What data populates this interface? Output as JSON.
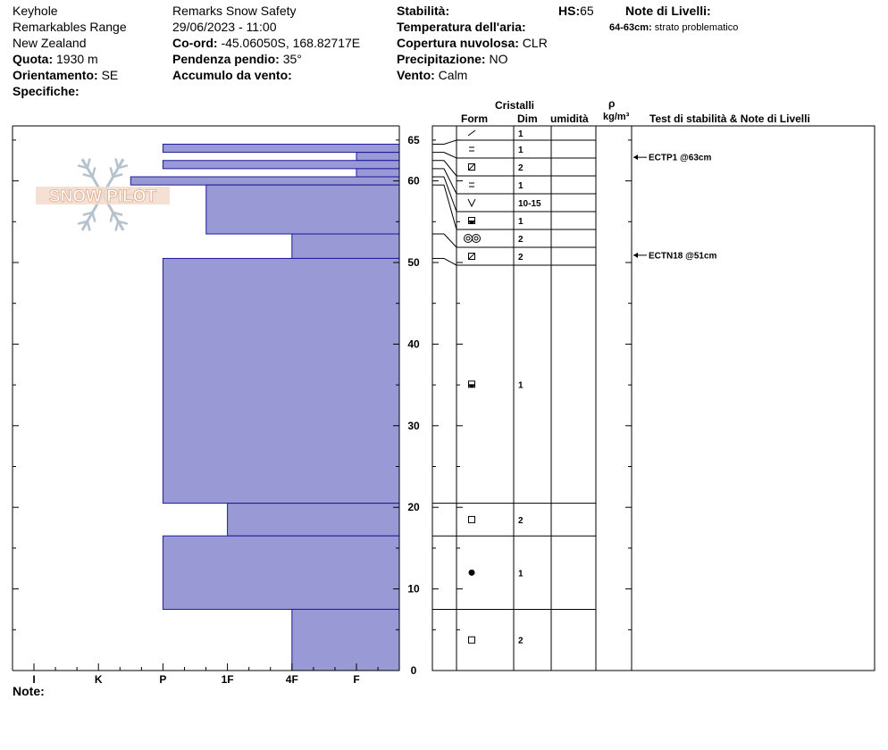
{
  "header": {
    "location": [
      "Keyhole",
      "Remarkables Range",
      "New Zealand"
    ],
    "quota_label": "Quota:",
    "quota_value": "1930 m",
    "orient_label": "Orientamento:",
    "orient_value": "SE",
    "specifiche_label": "Specifiche:",
    "org": "Remarks Snow Safety",
    "datetime": "29/06/2023 - 11:00",
    "coord_label": "Co-ord:",
    "coord_value": "-45.06050S, 168.82717E",
    "pendenza_label": "Pendenza pendio:",
    "pendenza_value": "35°",
    "accumulo_label": "Accumulo da vento:",
    "stabilita_label": "Stabilità:",
    "temp_label": "Temperatura dell'aria:",
    "copertura_label": "Copertura nuvolosa:",
    "copertura_value": "CLR",
    "precip_label": "Precipitazione:",
    "precip_value": "NO",
    "vento_label": "Vento:",
    "vento_value": "Calm",
    "hs_label": "HS:",
    "hs_value": "65",
    "note_livelli_label": "Note di Livelli:",
    "note_livelli_range": "64-63cm:",
    "note_livelli_text": "strato problematico"
  },
  "table_headers": {
    "cristalli": "Cristalli",
    "form": "Form",
    "dim": "Dim",
    "umidita": "umidità",
    "rho": "ρ",
    "rho_unit": "kg/m³",
    "tests": "Test di stabilità & Note di Livelli"
  },
  "footer": {
    "note_label": "Note:"
  },
  "watermark": "SNOW PILOT",
  "chart_data": {
    "type": "bar",
    "hardness_ticks": [
      "I",
      "K",
      "P",
      "1F",
      "4F",
      "F"
    ],
    "ylim": [
      0,
      67
    ],
    "y_ticks": [
      0,
      10,
      20,
      30,
      40,
      50,
      60,
      65
    ],
    "layers": [
      {
        "top": 64.5,
        "bottom": 63.5,
        "hardness": 3.0
      },
      {
        "top": 63.5,
        "bottom": 62.5,
        "hardness": 6.0
      },
      {
        "top": 62.5,
        "bottom": 61.5,
        "hardness": 3.0
      },
      {
        "top": 61.5,
        "bottom": 60.5,
        "hardness": 6.0
      },
      {
        "top": 60.5,
        "bottom": 59.5,
        "hardness": 2.5
      },
      {
        "top": 59.5,
        "bottom": 53.5,
        "hardness": 3.67
      },
      {
        "top": 53.5,
        "bottom": 50.5,
        "hardness": 5.0
      },
      {
        "top": 50.5,
        "bottom": 20.5,
        "hardness": 3.0
      },
      {
        "top": 20.5,
        "bottom": 16.5,
        "hardness": 4.0
      },
      {
        "top": 16.5,
        "bottom": 7.5,
        "hardness": 3.0
      },
      {
        "top": 7.5,
        "bottom": 0,
        "hardness": 5.0
      }
    ],
    "crystals": [
      {
        "form": "slash",
        "dim": "1"
      },
      {
        "form": "equal",
        "dim": "1"
      },
      {
        "form": "boxslash",
        "dim": "2"
      },
      {
        "form": "equal",
        "dim": "1"
      },
      {
        "form": "vee",
        "dim": "10-15"
      },
      {
        "form": "halfround",
        "dim": "1"
      },
      {
        "form": "rings",
        "dim": "2"
      },
      {
        "form": "boxslash",
        "dim": "2"
      },
      {
        "form": "halfround",
        "dim": "1"
      },
      {
        "form": "square",
        "dim": "2"
      },
      {
        "form": "dot",
        "dim": "1"
      },
      {
        "form": "square",
        "dim": "2"
      }
    ],
    "tests": [
      {
        "label": "ECTP1 @63cm",
        "height": 63
      },
      {
        "label": "ECTN18 @51cm",
        "height": 51
      }
    ]
  }
}
